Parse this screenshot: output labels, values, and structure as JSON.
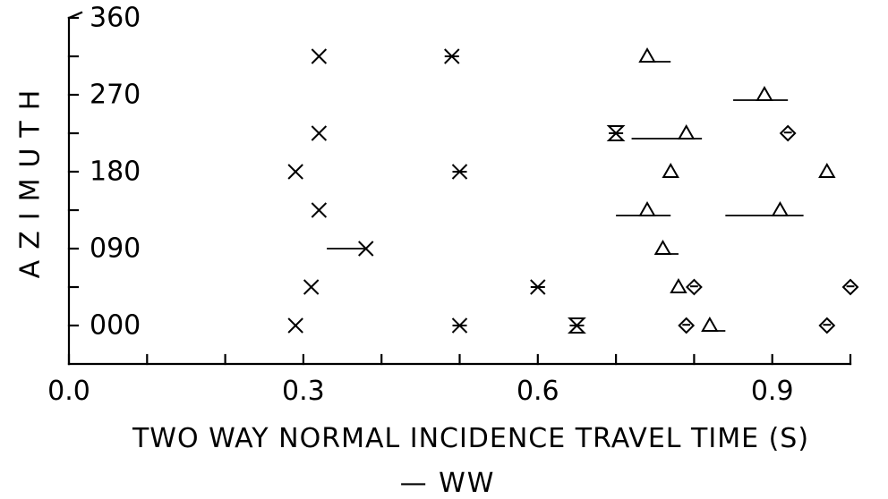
{
  "chart_data": {
    "type": "scatter",
    "xlabel": "TWO WAY NORMAL INCIDENCE TRAVEL TIME (S)",
    "ylabel": "AZIMUTH",
    "caption": "— WW",
    "xlim": [
      0.0,
      1.0
    ],
    "ylim": [
      -45,
      360
    ],
    "xticks": [
      0.0,
      0.1,
      0.2,
      0.3,
      0.4,
      0.5,
      0.6,
      0.7,
      0.8,
      0.9,
      1.0
    ],
    "xtick_labels": [
      {
        "value": 0.0,
        "label": "0.0"
      },
      {
        "value": 0.3,
        "label": "0.3"
      },
      {
        "value": 0.6,
        "label": "0.6"
      },
      {
        "value": 0.9,
        "label": "0.9"
      }
    ],
    "yticks": [
      0,
      45,
      90,
      135,
      180,
      225,
      270,
      315,
      360
    ],
    "ytick_labels": [
      {
        "value": 0,
        "label": "000"
      },
      {
        "value": 90,
        "label": "090"
      },
      {
        "value": 180,
        "label": "180"
      },
      {
        "value": 270,
        "label": "270"
      },
      {
        "value": 360,
        "label": "360"
      }
    ],
    "grid": false,
    "series": [
      {
        "marker": "x",
        "points": [
          {
            "x": 0.29,
            "y": 0
          },
          {
            "x": 0.31,
            "y": 45
          },
          {
            "x": 0.38,
            "y": 90,
            "bar": [
              0.33,
              0.38
            ]
          },
          {
            "x": 0.32,
            "y": 135
          },
          {
            "x": 0.29,
            "y": 180
          },
          {
            "x": 0.32,
            "y": 225
          },
          {
            "x": 0.32,
            "y": 315
          }
        ]
      },
      {
        "marker": "asterisk",
        "points": [
          {
            "x": 0.5,
            "y": 0
          },
          {
            "x": 0.6,
            "y": 45
          },
          {
            "x": 0.5,
            "y": 180
          },
          {
            "x": 0.49,
            "y": 315
          }
        ]
      },
      {
        "marker": "hourglass",
        "points": [
          {
            "x": 0.65,
            "y": 0
          },
          {
            "x": 0.7,
            "y": 225
          }
        ]
      },
      {
        "marker": "triangle",
        "points": [
          {
            "x": 0.82,
            "y": 0,
            "bar": [
              0.82,
              0.84
            ]
          },
          {
            "x": 0.78,
            "y": 45
          },
          {
            "x": 0.76,
            "y": 90,
            "bar": [
              0.75,
              0.78
            ]
          },
          {
            "x": 0.74,
            "y": 135,
            "bar": [
              0.7,
              0.77
            ]
          },
          {
            "x": 0.91,
            "y": 135,
            "bar": [
              0.84,
              0.94
            ]
          },
          {
            "x": 0.77,
            "y": 180,
            "bar": [
              0.76,
              0.78
            ]
          },
          {
            "x": 0.97,
            "y": 180,
            "bar": [
              0.96,
              0.98
            ]
          },
          {
            "x": 0.79,
            "y": 225,
            "bar": [
              0.72,
              0.81
            ]
          },
          {
            "x": 0.89,
            "y": 270,
            "bar": [
              0.85,
              0.92
            ]
          },
          {
            "x": 0.74,
            "y": 315,
            "bar": [
              0.74,
              0.77
            ]
          }
        ]
      },
      {
        "marker": "diamond",
        "points": [
          {
            "x": 0.79,
            "y": 0
          },
          {
            "x": 0.97,
            "y": 0
          },
          {
            "x": 0.8,
            "y": 45
          },
          {
            "x": 1.0,
            "y": 45
          },
          {
            "x": 0.92,
            "y": 225
          }
        ]
      }
    ]
  }
}
